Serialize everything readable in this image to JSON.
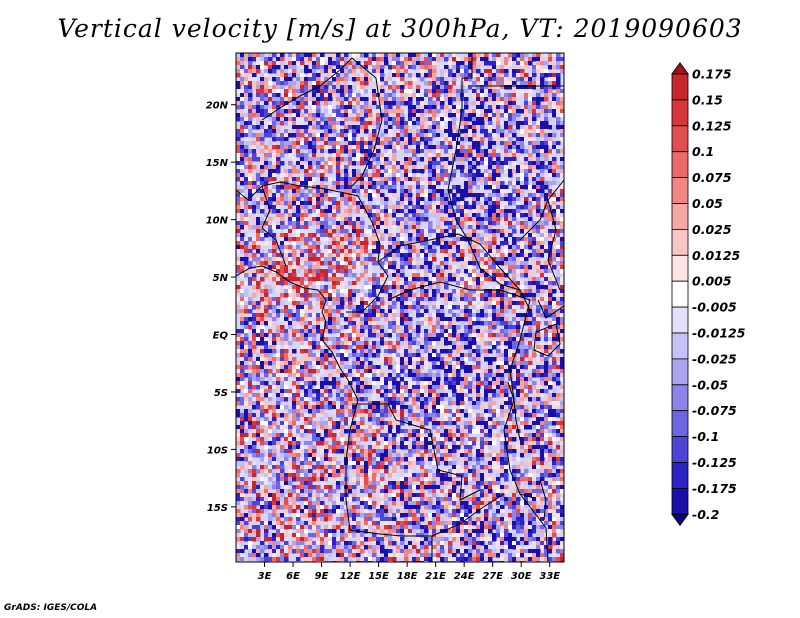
{
  "chart_data": {
    "type": "heatmap",
    "title": "Vertical velocity [m/s] at 300hPa, VT: 2019090603",
    "variable": "Vertical velocity",
    "units": "m/s",
    "level": "300hPa",
    "valid_time": "2019090603",
    "x_ticks": [
      "3E",
      "6E",
      "9E",
      "12E",
      "15E",
      "18E",
      "21E",
      "24E",
      "27E",
      "30E",
      "33E"
    ],
    "x_tick_values": [
      3,
      6,
      9,
      12,
      15,
      18,
      21,
      24,
      27,
      30,
      33
    ],
    "y_ticks": [
      "20N",
      "15N",
      "10N",
      "5N",
      "EQ",
      "5S",
      "10S",
      "15S"
    ],
    "y_tick_values": [
      20,
      15,
      10,
      5,
      0,
      -5,
      -10,
      -15
    ],
    "xlim": [
      0,
      34.5
    ],
    "ylim": [
      -19.8,
      24.5
    ],
    "colorbar": {
      "levels": [
        "0.175",
        "0.15",
        "0.125",
        "0.1",
        "0.075",
        "0.05",
        "0.025",
        "0.0125",
        "0.005",
        "-0.005",
        "-0.0125",
        "-0.025",
        "-0.05",
        "-0.075",
        "-0.1",
        "-0.125",
        "-0.175",
        "-0.2"
      ],
      "colors": [
        "#a8121c",
        "#c8262e",
        "#d8363c",
        "#e24d4f",
        "#ea6b6a",
        "#ef8785",
        "#f4a7a5",
        "#f8c7c4",
        "#fce4e2",
        "#ffffff",
        "#e2e0fb",
        "#c6c2f6",
        "#a9a3f0",
        "#8b84ea",
        "#6e65e2",
        "#4d43d6",
        "#2d22c6",
        "#1a0fa8",
        "#0b0480"
      ]
    },
    "colormap_note": "Diverging red (upward) / blue (downward) palette; coherent red patches near West African coast 5N, 0-20E and along 10N; broad blue over Sahara and Congo Basin."
  },
  "footer": "GrADS: IGES/COLA"
}
